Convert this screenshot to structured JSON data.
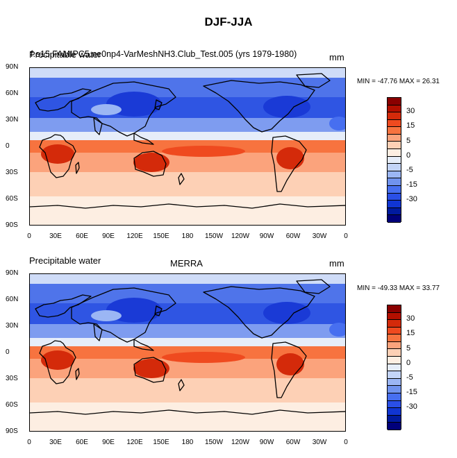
{
  "figure_title": "DJF-JJA",
  "colorbar_levels": [
    "30",
    "15",
    "5",
    "0",
    "-5",
    "-15",
    "-30"
  ],
  "colorbar_colors": [
    "#8a0000",
    "#b30f00",
    "#d42a0a",
    "#ef4a1f",
    "#f7733f",
    "#fba37c",
    "#fdd0b5",
    "#fdeee2",
    "#e6edf9",
    "#c3d4f7",
    "#9bb6f4",
    "#7093ee",
    "#476ff0",
    "#2a4fe6",
    "#1035d2",
    "#001a9e",
    "#00007a"
  ],
  "lat_labels": [
    "90N",
    "60N",
    "30N",
    "0",
    "30S",
    "60S",
    "90S"
  ],
  "lon_labels": [
    "0",
    "30E",
    "60E",
    "90E",
    "120E",
    "150E",
    "180",
    "150W",
    "120W",
    "90W",
    "60W",
    "30W",
    "0"
  ],
  "panels": [
    {
      "left_title": "Precipitable water",
      "center_title": "f.e15.FAMIPC5.ne0np4-VarMeshNH3.Club_Test.005 (yrs 1979-1980)",
      "units": "mm",
      "min_max": "MIN = -47.76 MAX =  26.31"
    },
    {
      "left_title": "Precipitable water",
      "center_title": "MERRA",
      "units": "mm",
      "min_max": "MIN = -49.33 MAX =  33.77"
    }
  ]
}
